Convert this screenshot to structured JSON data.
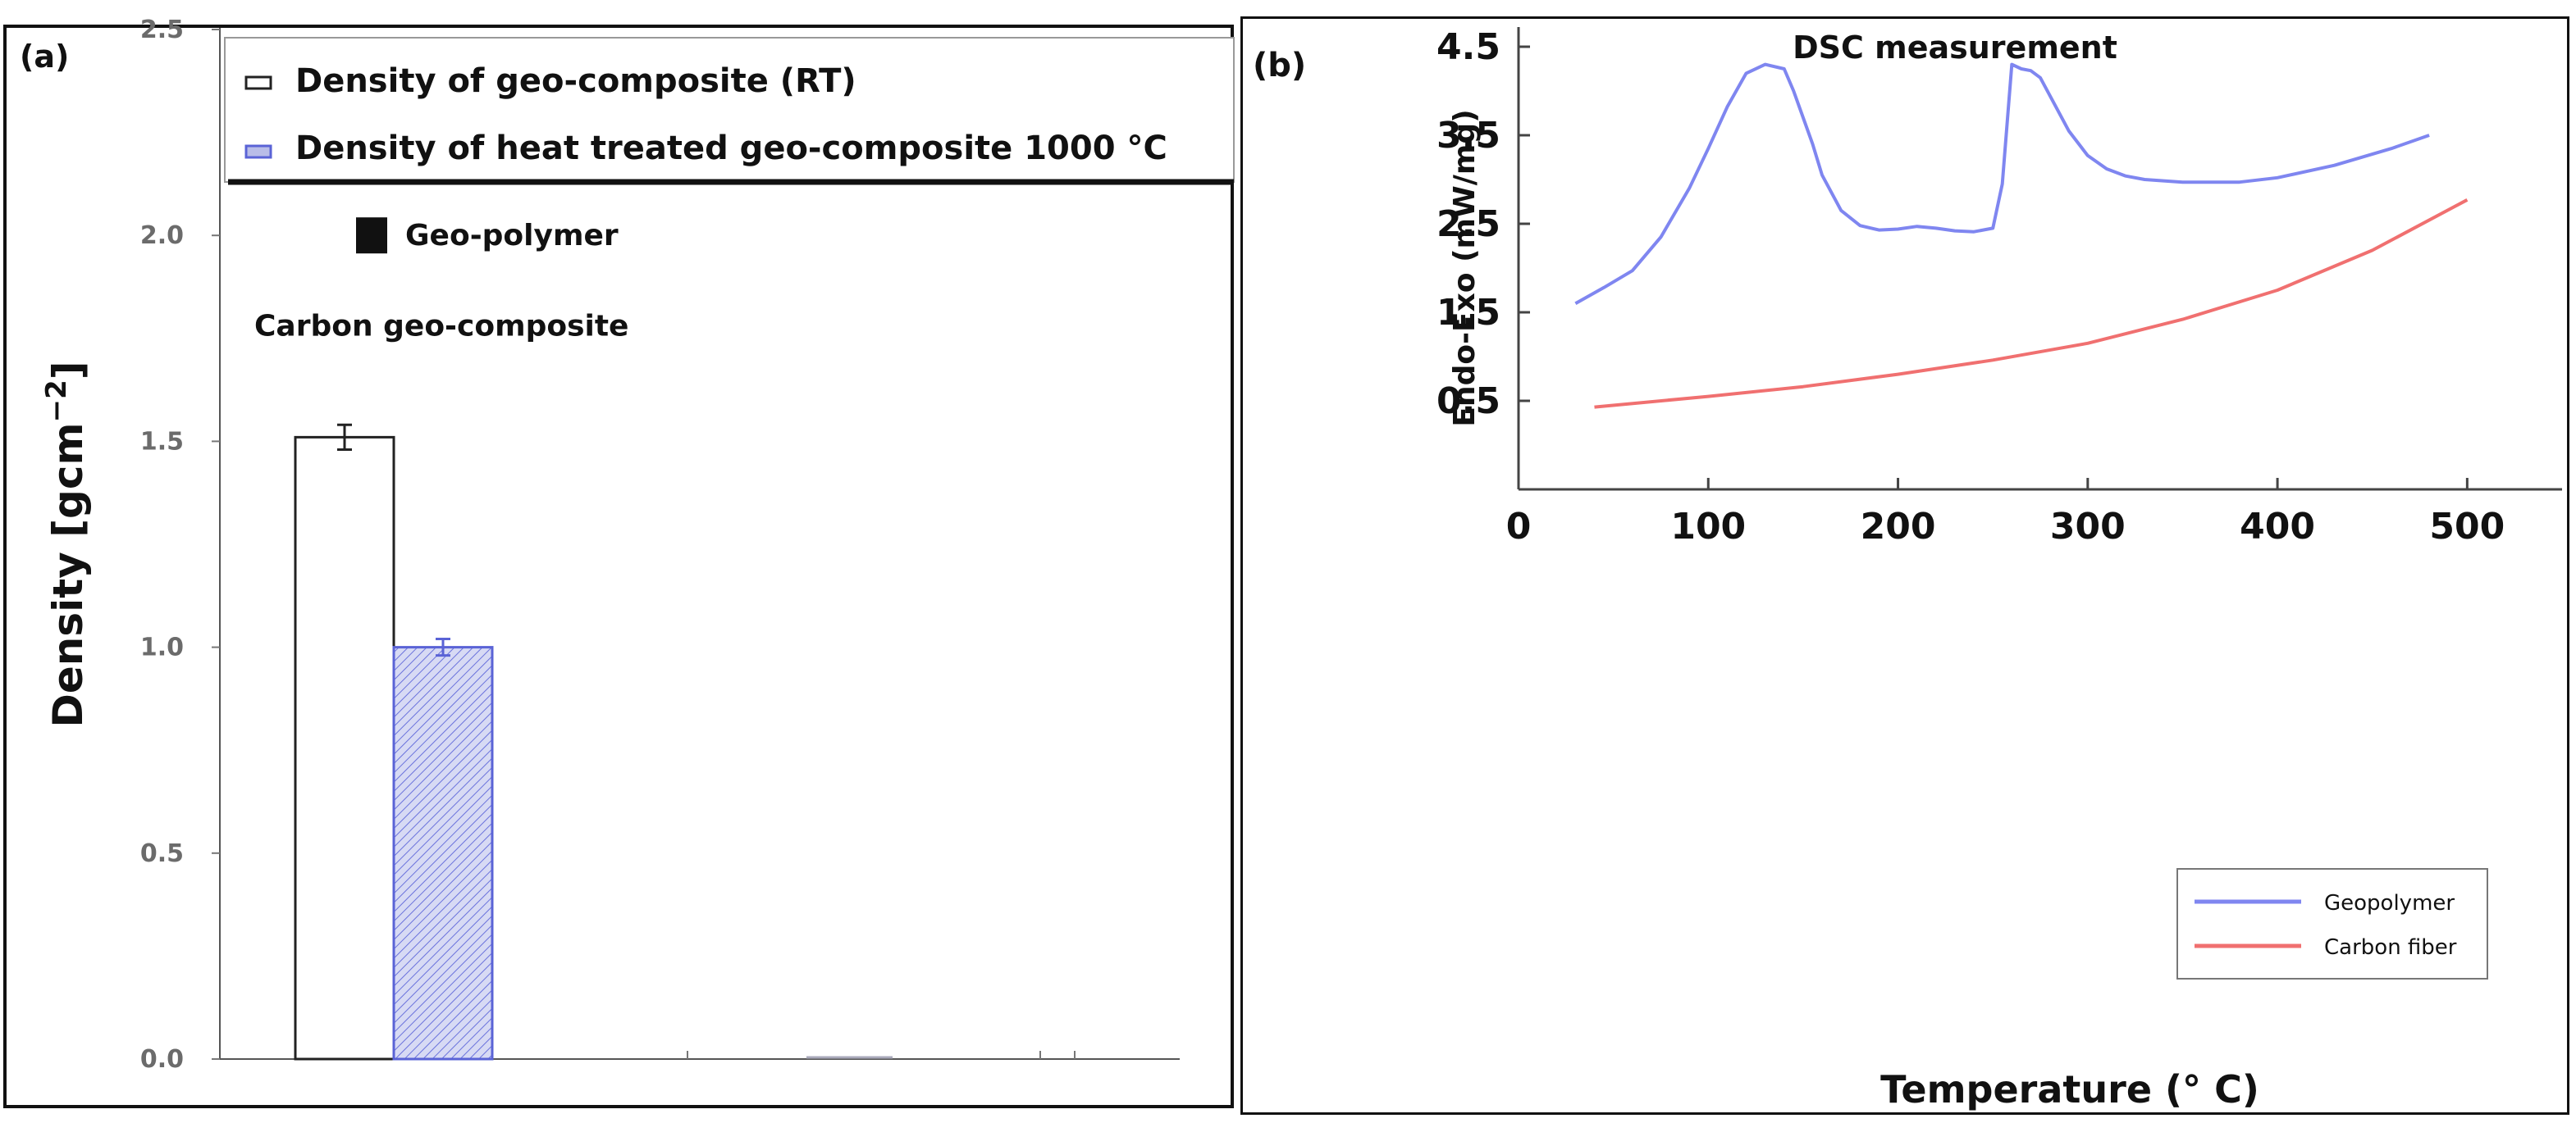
{
  "chart_data": [
    {
      "panel_label": "(a)",
      "type": "bar",
      "title": "",
      "xlabel": "",
      "ylabel": "Density [gcm",
      "ylabel_sup": "−2",
      "ylabel_close": "]",
      "ylim": [
        0.0,
        2.5
      ],
      "yticks": [
        "0.0",
        "0.5",
        "1.0",
        "1.5",
        "2.0",
        "2.5"
      ],
      "categories": [
        "Carbon geo-composite",
        "Geo-polymer"
      ],
      "series": [
        {
          "name": "Density of geo-composite (RT)",
          "color": "#ffffff",
          "edge": "#222222",
          "values": [
            1.51,
            null
          ],
          "errors": [
            0.03,
            null
          ]
        },
        {
          "name": "Density of heat treated geo-composite 1000 °C",
          "color": "#b9bde8",
          "edge": "#5a63d6",
          "values": [
            1.0,
            null
          ],
          "errors": [
            0.02,
            null
          ]
        }
      ],
      "legend_position": "top",
      "annotations": [
        {
          "text": "Geo-polymer",
          "y": 2.0,
          "marker": "black-square"
        },
        {
          "text": "Carbon geo-composite",
          "y": 1.78
        }
      ]
    },
    {
      "panel_label": "(b)",
      "type": "line",
      "title": "DSC measurement",
      "xlabel": "Temperature (° C)",
      "ylabel": "Endo-Exo (mW/mg)",
      "xlim": [
        0,
        550
      ],
      "ylim": [
        -0.5,
        4.5
      ],
      "xticks": [
        "0",
        "100",
        "200",
        "300",
        "400",
        "500"
      ],
      "yticks": [
        "0.5",
        "1.5",
        "2.5",
        "3.5",
        "4.5"
      ],
      "legend_position": "bottom-right",
      "series": [
        {
          "name": "Geopolymer",
          "color": "#7f86f0",
          "x": [
            30,
            45,
            60,
            75,
            90,
            100,
            110,
            120,
            130,
            140,
            145,
            150,
            155,
            160,
            170,
            180,
            190,
            200,
            210,
            220,
            230,
            240,
            250,
            255,
            260,
            265,
            270,
            275,
            280,
            290,
            300,
            310,
            320,
            330,
            350,
            380,
            400,
            430,
            460,
            480
          ],
          "y": [
            1.6,
            1.78,
            1.97,
            2.35,
            2.9,
            3.35,
            3.82,
            4.2,
            4.3,
            4.25,
            4.0,
            3.7,
            3.4,
            3.05,
            2.65,
            2.48,
            2.43,
            2.44,
            2.47,
            2.45,
            2.42,
            2.41,
            2.45,
            2.95,
            4.3,
            4.25,
            4.23,
            4.15,
            3.95,
            3.55,
            3.27,
            3.12,
            3.04,
            3.0,
            2.97,
            2.97,
            3.02,
            3.16,
            3.35,
            3.5
          ]
        },
        {
          "name": "Carbon fiber",
          "color": "#f07070",
          "x": [
            40,
            100,
            150,
            200,
            250,
            300,
            350,
            400,
            450,
            500
          ],
          "y": [
            0.43,
            0.55,
            0.66,
            0.8,
            0.96,
            1.15,
            1.42,
            1.75,
            2.2,
            2.77
          ]
        }
      ]
    }
  ]
}
